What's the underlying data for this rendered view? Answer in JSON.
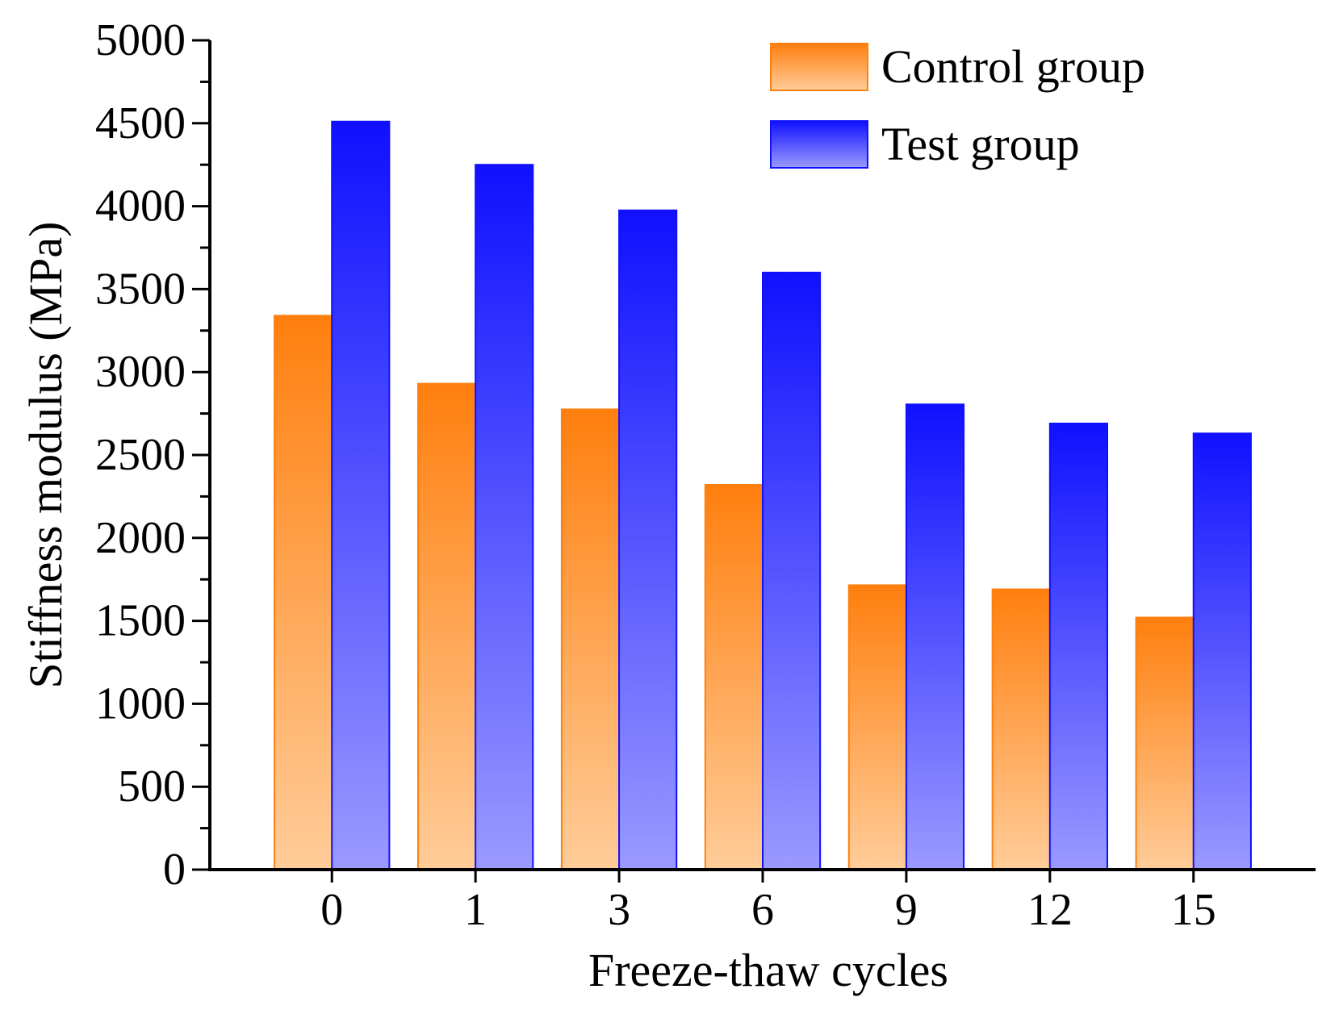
{
  "chart_data": {
    "type": "bar",
    "title": "",
    "xlabel": "Freeze-thaw cycles",
    "ylabel": "Stiffness modulus (MPa)",
    "categories": [
      "0",
      "1",
      "3",
      "6",
      "9",
      "12",
      "15"
    ],
    "ylim": [
      0,
      5000
    ],
    "yticks": [
      "0",
      "500",
      "1000",
      "1500",
      "2000",
      "2500",
      "3000",
      "3500",
      "4000",
      "4500",
      "5000"
    ],
    "series": [
      {
        "name": "Control group",
        "values": [
          3340,
          2930,
          2775,
          2320,
          1715,
          1690,
          1520
        ],
        "color": "#ff7f0e",
        "light_color": "#ffcc99"
      },
      {
        "name": "Test group",
        "values": [
          4510,
          4250,
          3975,
          3600,
          2805,
          2690,
          2630
        ],
        "color": "#1010ff",
        "light_color": "#9a9aff"
      }
    ],
    "legend_position": "top-right",
    "grid": false
  }
}
